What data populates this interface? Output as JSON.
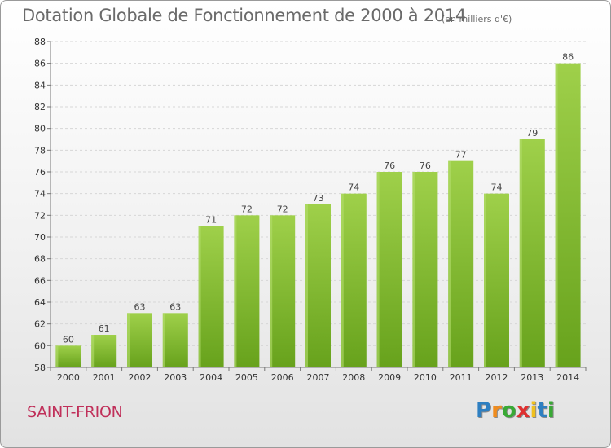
{
  "chart_data": {
    "type": "bar",
    "title": "Dotation Globale de Fonctionnement de 2000 à 2014",
    "subtitle": "(en milliers d'€)",
    "categories": [
      "2000",
      "2001",
      "2002",
      "2003",
      "2004",
      "2005",
      "2006",
      "2007",
      "2008",
      "2009",
      "2010",
      "2011",
      "2012",
      "2013",
      "2014"
    ],
    "values": [
      60,
      61,
      63,
      63,
      71,
      72,
      72,
      73,
      74,
      76,
      76,
      77,
      74,
      79,
      86
    ],
    "ylim": [
      58,
      88
    ],
    "yticks": [
      58,
      60,
      62,
      64,
      66,
      68,
      70,
      72,
      74,
      76,
      78,
      80,
      82,
      84,
      86,
      88
    ],
    "grid": true,
    "bar_color": "#8cc43c",
    "bar_color_dark": "#6aa51f"
  },
  "footer": {
    "commune": "SAINT-FRION",
    "logo_letters": [
      {
        "ch": "P",
        "color": "#2e7fc1"
      },
      {
        "ch": "r",
        "color": "#f08c1e"
      },
      {
        "ch": "o",
        "color": "#39a935"
      },
      {
        "ch": "x",
        "color": "#e03030"
      },
      {
        "ch": "i",
        "color": "#f0c01e"
      },
      {
        "ch": "t",
        "color": "#2e7fc1"
      },
      {
        "ch": "i",
        "color": "#39a935"
      }
    ]
  }
}
